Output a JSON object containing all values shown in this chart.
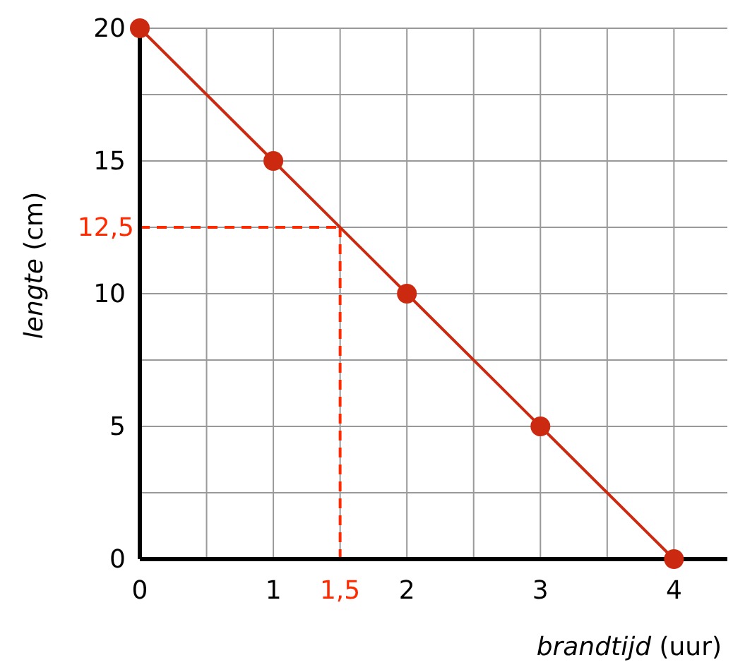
{
  "chart_data": {
    "type": "line",
    "xlabel": "brandtijd (uur)",
    "ylabel": "lengte (cm)",
    "x": [
      0,
      1,
      2,
      3,
      4
    ],
    "series": [
      {
        "color": "#cc2a10",
        "values": [
          20,
          15,
          10,
          5,
          0
        ]
      }
    ],
    "xlim": [
      0,
      4.4
    ],
    "ylim": [
      0,
      20
    ],
    "xticks": [
      0,
      {
        "value": 0.5,
        "label": null
      },
      1,
      {
        "value": 1.5,
        "label": null
      },
      2,
      {
        "value": 2.5,
        "label": null
      },
      3,
      {
        "value": 3.5,
        "label": null
      },
      4
    ],
    "yticks": [
      0,
      {
        "value": 2.5,
        "label": null
      },
      5,
      {
        "value": 7.5,
        "label": null
      },
      10,
      {
        "value": 12.5,
        "label": null
      },
      15,
      {
        "value": 17.5,
        "label": null
      },
      20
    ],
    "grid": true,
    "marker": "circle",
    "line_style": "solid",
    "ref_lines": [
      {
        "axis": "x",
        "value": 1.5,
        "label": "1,5",
        "color": "#ff2a00",
        "line_style": "dashed"
      },
      {
        "axis": "y",
        "value": 12.5,
        "label": "12,5",
        "color": "#ff2a00",
        "line_style": "dashed"
      }
    ]
  }
}
